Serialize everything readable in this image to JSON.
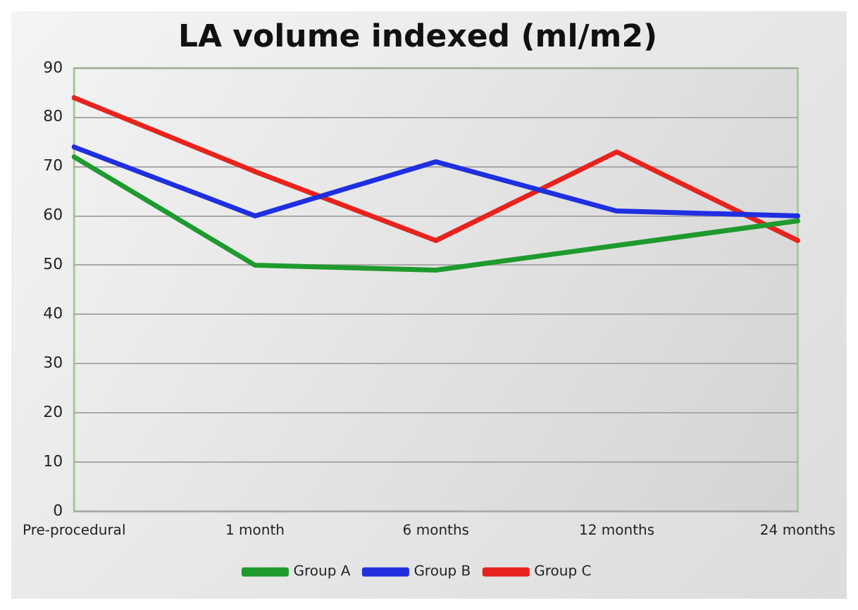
{
  "chart_data": {
    "type": "line",
    "title": "LA volume indexed (ml/m2)",
    "categories": [
      "Pre-procedural",
      "1 month",
      "6 months",
      "12 months",
      "24 months"
    ],
    "series": [
      {
        "name": "Group A",
        "color": "#1e9a2e",
        "values": [
          72,
          50,
          49,
          54,
          59
        ]
      },
      {
        "name": "Group B",
        "color": "#1f2fe0",
        "values": [
          74,
          60,
          71,
          61,
          60
        ]
      },
      {
        "name": "Group C",
        "color": "#e8231e",
        "values": [
          84,
          69,
          55,
          73,
          55
        ]
      }
    ],
    "ylim": [
      0,
      90
    ],
    "yticks": [
      0,
      10,
      20,
      30,
      40,
      50,
      60,
      70,
      80,
      90
    ],
    "grid": "y",
    "legend": "bottom",
    "marker": "none",
    "line_style": "solid"
  }
}
